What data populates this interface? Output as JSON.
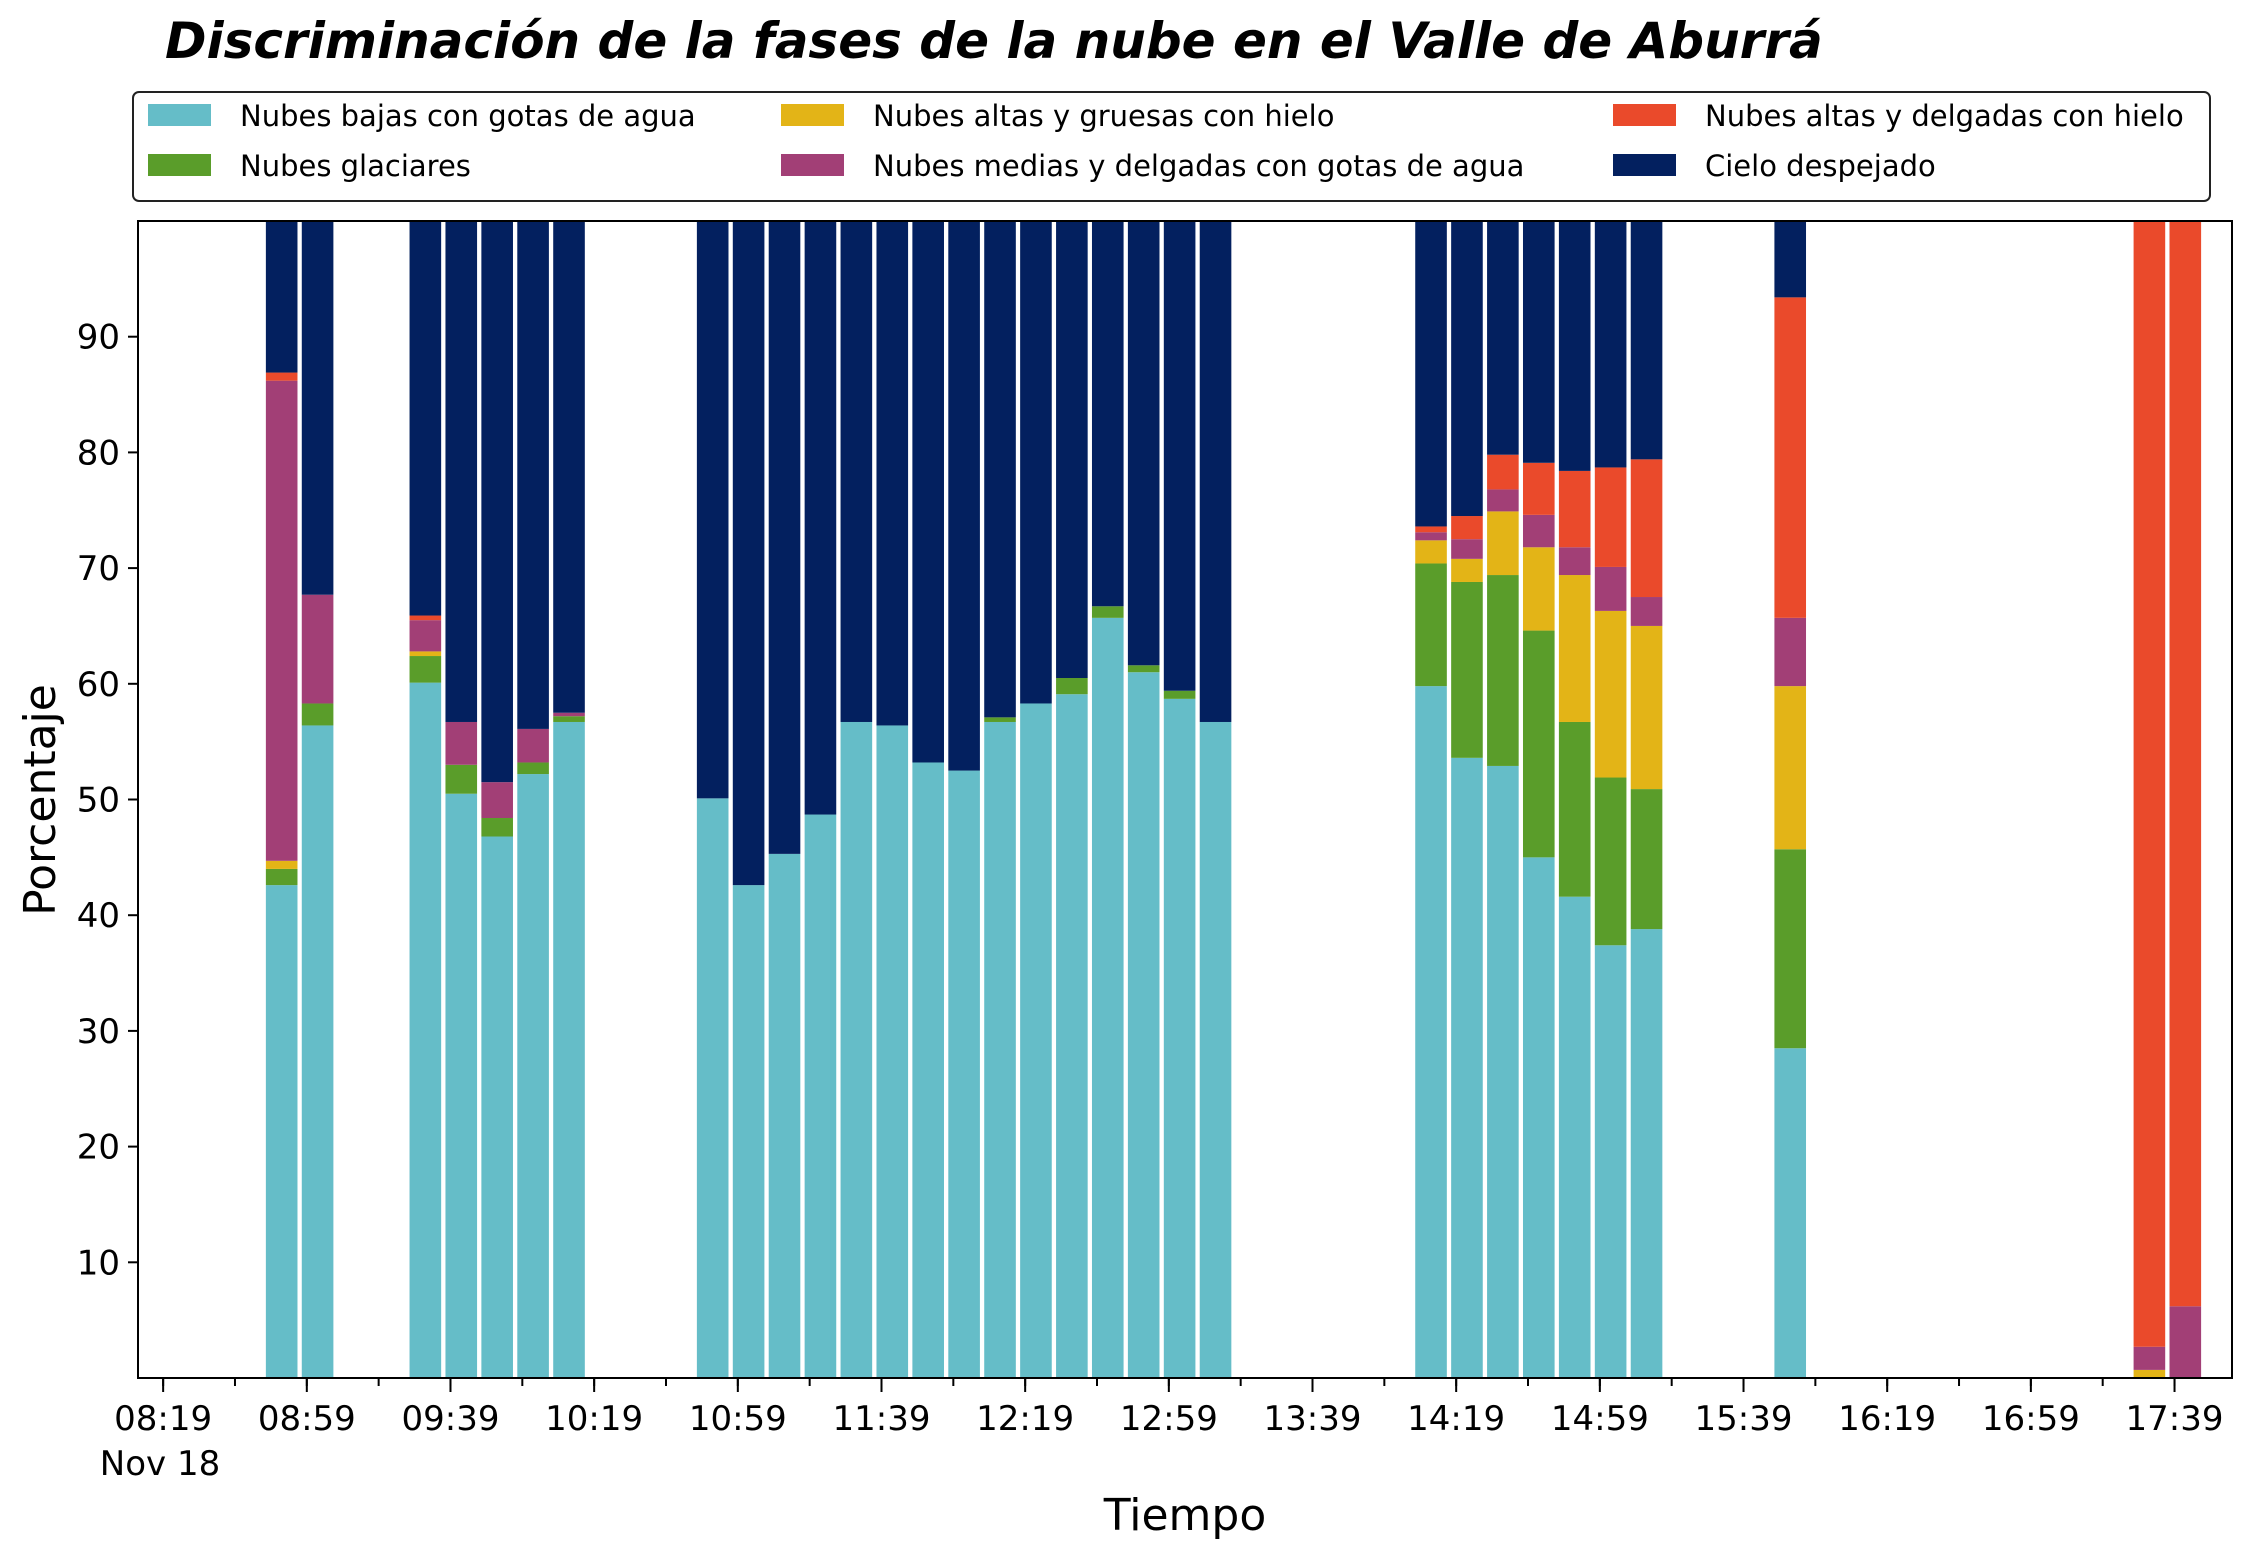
{
  "chart_data": {
    "type": "bar",
    "stacked": true,
    "title": "Discriminación de la fases de la nube en el Valle de Aburrá",
    "xlabel": "Tiempo",
    "ylabel": "Porcentaje",
    "ylim": [
      0,
      100
    ],
    "y_ticks": [
      10,
      20,
      30,
      40,
      50,
      60,
      70,
      80,
      90
    ],
    "x_ticks": [
      "08:19",
      "08:59",
      "09:39",
      "10:19",
      "10:59",
      "11:39",
      "12:19",
      "12:59",
      "13:39",
      "14:19",
      "14:59",
      "15:39",
      "16:19",
      "16:59",
      "17:39"
    ],
    "x_date_label": "Nov 18",
    "legend_position": "top",
    "grid": false,
    "x": [
      "08:52",
      "09:02",
      "09:32",
      "09:42",
      "09:52",
      "10:02",
      "10:12",
      "10:52",
      "11:02",
      "11:12",
      "11:22",
      "11:32",
      "11:42",
      "11:52",
      "12:02",
      "12:12",
      "12:22",
      "12:32",
      "12:42",
      "12:52",
      "13:02",
      "13:12",
      "14:12",
      "14:22",
      "14:32",
      "14:42",
      "14:52",
      "15:02",
      "15:12",
      "15:52",
      "17:32",
      "17:42"
    ],
    "series": [
      {
        "name": "Nubes bajas con gotas de agua",
        "color": "#65bdc8",
        "values": [
          42.6,
          56.4,
          60.1,
          50.5,
          46.8,
          52.2,
          56.7,
          50.1,
          42.6,
          45.3,
          48.7,
          56.7,
          56.4,
          53.2,
          52.5,
          56.7,
          58.3,
          59.1,
          65.7,
          61.0,
          58.7,
          56.7,
          59.8,
          53.6,
          52.9,
          45.0,
          41.6,
          37.4,
          38.8,
          28.5,
          0,
          0
        ]
      },
      {
        "name": "Nubes glaciares",
        "color": "#5a9d2a",
        "values": [
          1.4,
          1.9,
          2.3,
          2.5,
          1.6,
          1.0,
          0.5,
          0,
          0,
          0,
          0,
          0,
          0,
          0,
          0,
          0.4,
          0,
          1.4,
          1.0,
          0.6,
          0.7,
          0,
          10.6,
          15.2,
          16.5,
          19.6,
          15.1,
          14.5,
          12.1,
          17.2,
          0,
          0
        ]
      },
      {
        "name": "Nubes altas y gruesas con hielo",
        "color": "#e3b417",
        "values": [
          0.7,
          0,
          0.4,
          0,
          0,
          0,
          0,
          0,
          0,
          0,
          0,
          0,
          0,
          0,
          0,
          0,
          0,
          0,
          0,
          0,
          0,
          0,
          2.0,
          2.0,
          5.5,
          7.2,
          12.7,
          14.4,
          14.1,
          14.1,
          0.7,
          0
        ]
      },
      {
        "name": "Nubes medias y delgadas con gotas de agua",
        "color": "#a23f76",
        "values": [
          41.5,
          9.4,
          2.7,
          3.7,
          3.1,
          2.9,
          0.3,
          0,
          0,
          0,
          0,
          0,
          0,
          0,
          0,
          0,
          0,
          0,
          0,
          0,
          0,
          0,
          0.7,
          1.7,
          1.9,
          2.8,
          2.4,
          3.8,
          2.5,
          5.9,
          2.0,
          6.2
        ]
      },
      {
        "name": "Nubes altas y delgadas con hielo",
        "color": "#ea4a2b",
        "values": [
          0.7,
          0,
          0.4,
          0,
          0,
          0,
          0,
          0,
          0,
          0,
          0,
          0,
          0,
          0,
          0,
          0,
          0,
          0,
          0,
          0,
          0,
          0,
          0.5,
          2.0,
          3.0,
          4.5,
          6.6,
          8.6,
          11.9,
          27.7,
          97.3,
          93.8
        ]
      },
      {
        "name": "Cielo despejado",
        "color": "#03205f",
        "values": [
          13.1,
          32.3,
          34.1,
          43.3,
          48.5,
          43.9,
          42.5,
          49.9,
          57.4,
          54.7,
          51.3,
          43.3,
          43.6,
          46.8,
          47.5,
          42.9,
          41.7,
          39.5,
          33.3,
          38.4,
          40.6,
          43.3,
          26.4,
          25.5,
          20.2,
          20.9,
          21.6,
          21.3,
          20.6,
          6.6,
          0,
          0
        ]
      }
    ]
  }
}
